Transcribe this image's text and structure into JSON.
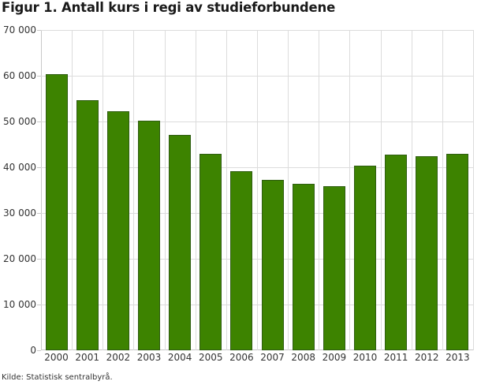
{
  "title": "Figur 1. Antall kurs i regi av studieforbundene",
  "source": "Kilde: Statistisk sentralbyrå.",
  "colors": {
    "bar": "#3d8300",
    "bar_border": "#2f5d12",
    "grid": "#dcdcdc"
  },
  "chart_data": {
    "type": "bar",
    "title": "Figur 1. Antall kurs i regi av studieforbundene",
    "xlabel": "",
    "ylabel": "",
    "categories": [
      "2000",
      "2001",
      "2002",
      "2003",
      "2004",
      "2005",
      "2006",
      "2007",
      "2008",
      "2009",
      "2010",
      "2011",
      "2012",
      "2013"
    ],
    "values": [
      60300,
      54600,
      52200,
      50100,
      47000,
      42900,
      39100,
      37200,
      36400,
      35900,
      40300,
      42700,
      42400,
      43000
    ],
    "ylim": [
      0,
      70000
    ],
    "yticks": [
      0,
      10000,
      20000,
      30000,
      40000,
      50000,
      60000,
      70000
    ],
    "ytick_labels": [
      "0",
      "10 000",
      "20 000",
      "30 000",
      "40 000",
      "50 000",
      "60 000",
      "70 000"
    ],
    "grid": true,
    "legend": null,
    "source": "Kilde: Statistisk sentralbyrå."
  }
}
